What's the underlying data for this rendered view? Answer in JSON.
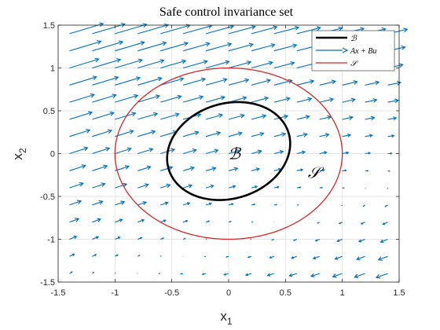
{
  "chart_data": {
    "type": "scatter",
    "title": "Safe control invariance set",
    "xlabel": {
      "base": "x",
      "sub": "1"
    },
    "ylabel": {
      "base": "x",
      "sub": "2"
    },
    "xlim": [
      -1.5,
      1.5
    ],
    "ylim": [
      -1.5,
      1.5
    ],
    "xticks": [
      "-1.5",
      "-1",
      "-0.5",
      "0",
      "0.5",
      "1",
      "1.5"
    ],
    "yticks": [
      "-1.5",
      "-1",
      "-0.5",
      "0",
      "0.5",
      "1",
      "1.5"
    ],
    "grid": true,
    "legend_position": "top-right",
    "legend": [
      {
        "label": "ℬ",
        "color": "#000000",
        "style": "thick-line"
      },
      {
        "label": "Ax + Bu",
        "color": "#0072BD",
        "style": "arrow"
      },
      {
        "label": "𝒮",
        "color": "#D62728",
        "style": "line"
      }
    ],
    "annotations": [
      {
        "text": "ℬ",
        "x": 0.05,
        "y": 0.0
      },
      {
        "text": "𝒮",
        "x": 0.75,
        "y": -0.22
      }
    ],
    "series": [
      {
        "name": "ℬ",
        "kind": "ellipse",
        "color": "#000000",
        "center": [
          0.0,
          0.03
        ],
        "semi_axes": [
          0.51,
          0.6
        ],
        "rotation_deg": -35
      },
      {
        "name": "𝒮",
        "kind": "ellipse",
        "color": "#D62728",
        "center": [
          0.0,
          0.0
        ],
        "semi_axes": [
          1.0,
          1.0
        ],
        "rotation_deg": 0
      },
      {
        "name": "Ax + Bu",
        "kind": "quiver",
        "color": "#0072BD",
        "x": [
          -1.4,
          -1.2,
          -1.0,
          -0.8,
          -0.6,
          -0.4,
          -0.2,
          0.0,
          0.2,
          0.4,
          0.6,
          0.8,
          1.0,
          1.2,
          1.4
        ],
        "y": [
          -1.4,
          -1.2,
          -1.0,
          -0.8,
          -0.6,
          -0.4,
          -0.2,
          0.0,
          0.2,
          0.4,
          0.6,
          0.8,
          1.0,
          1.2,
          1.4
        ],
        "field": {
          "u": "0.22*y - 0.10*x + 0.22",
          "v": "0.06*y - 0.04*x + 0.06"
        }
      }
    ]
  },
  "colors": {
    "axis": "#262626",
    "grid": "#dcdcdc",
    "field": "#0072BD",
    "safe_set": "#D62728",
    "invariant_set": "#000000"
  }
}
